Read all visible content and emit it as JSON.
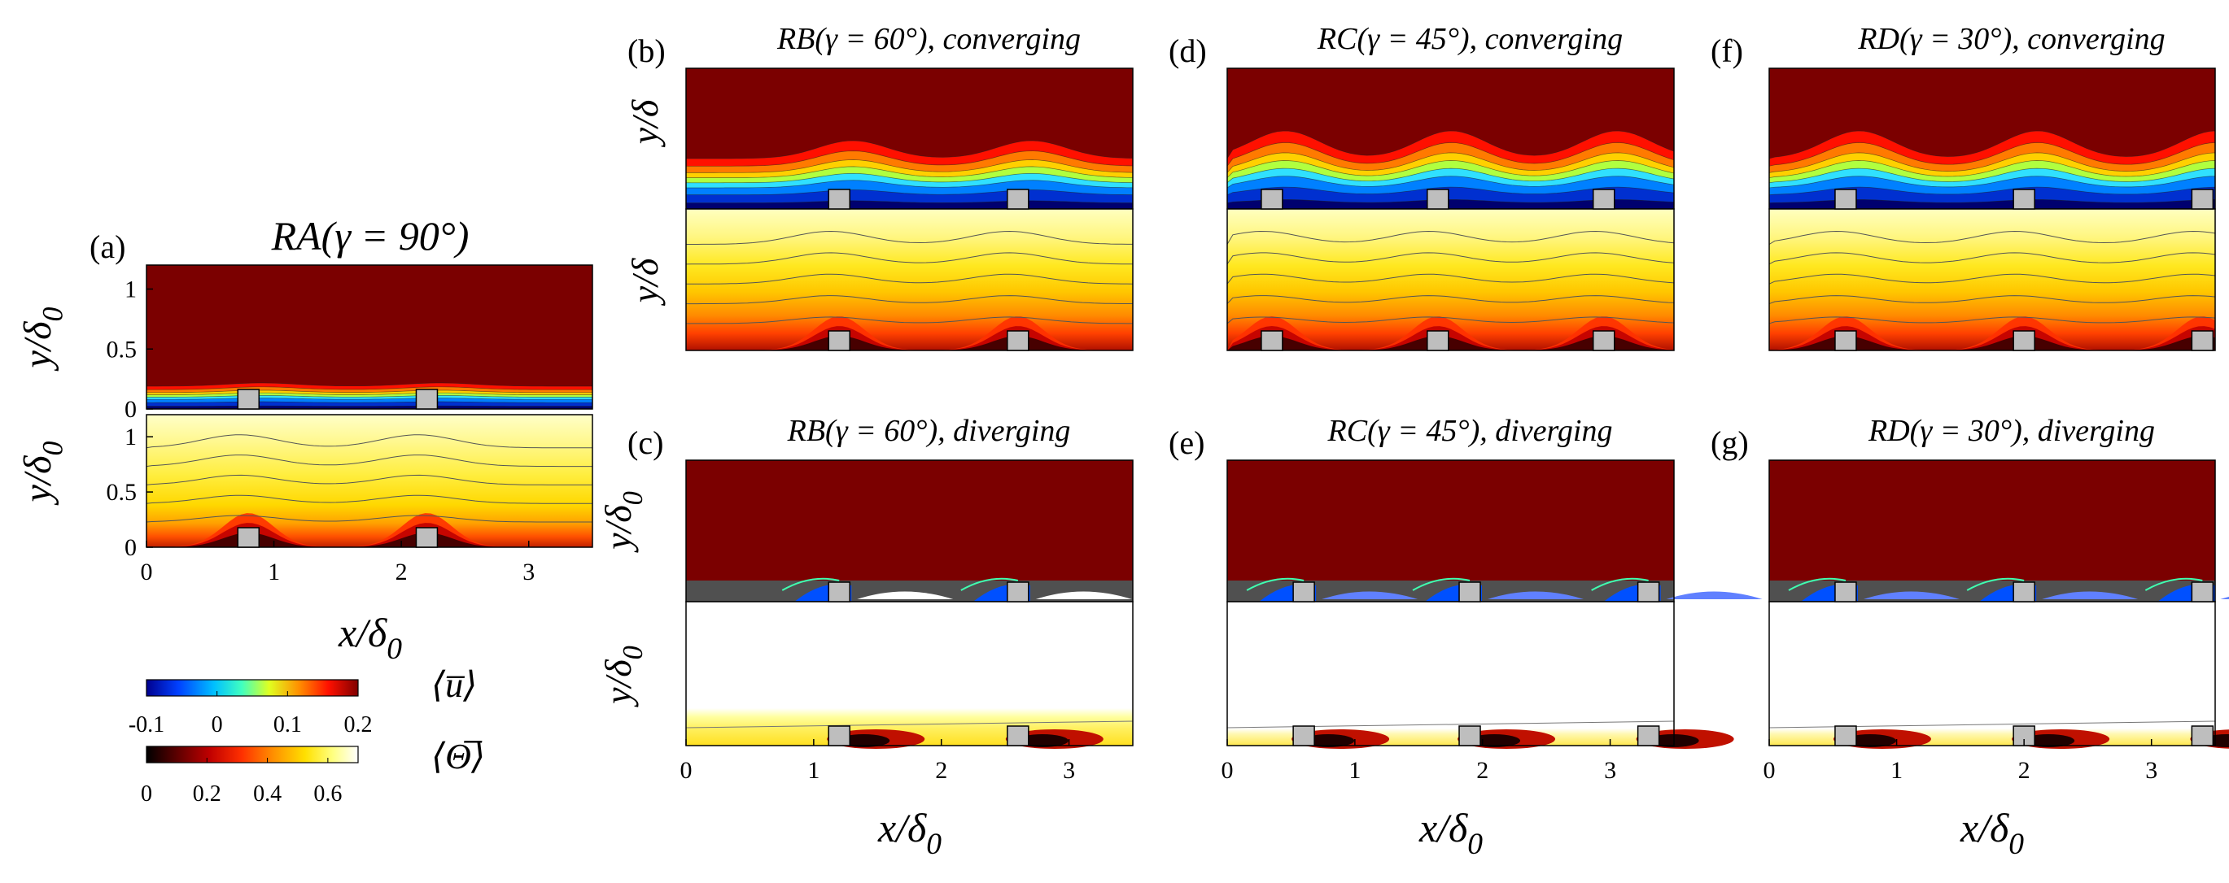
{
  "figure": {
    "panels": [
      {
        "id": "a",
        "label": "(a)",
        "title": "RA(γ = 90°)",
        "xlabel": "x/δ",
        "xlabel_sub": "0",
        "ylabel_top": "y/δ",
        "ylabel_top_sub": "0",
        "ylabel_bottom": "y/δ",
        "ylabel_bottom_sub": "0",
        "xticks": [
          "0",
          "1",
          "2",
          "3"
        ],
        "yticks_top": [
          "0",
          "0.5",
          "1"
        ],
        "yticks_bottom": [
          "0",
          "0.5",
          "1"
        ]
      },
      {
        "id": "b",
        "label": "(b)",
        "title": "RB(γ = 60°), converging",
        "ylabel_top": "y/δ",
        "ylabel_bottom": "y/δ"
      },
      {
        "id": "c",
        "label": "(c)",
        "title": "RB(γ = 60°), diverging",
        "xlabel": "x/δ",
        "xlabel_sub": "0",
        "ylabel_top": "y/δ",
        "ylabel_top_sub": "0",
        "ylabel_bottom": "y/δ",
        "ylabel_bottom_sub": "0",
        "xticks": [
          "0",
          "1",
          "2",
          "3"
        ]
      },
      {
        "id": "d",
        "label": "(d)",
        "title": "RC(γ = 45°), converging"
      },
      {
        "id": "e",
        "label": "(e)",
        "title": "RC(γ = 45°), diverging",
        "xlabel": "x/δ",
        "xlabel_sub": "0",
        "xticks": [
          "0",
          "1",
          "2",
          "3"
        ]
      },
      {
        "id": "f",
        "label": "(f)",
        "title": "RD(γ = 30°), converging"
      },
      {
        "id": "g",
        "label": "(g)",
        "title": "RD(γ = 30°), diverging",
        "xlabel": "x/δ",
        "xlabel_sub": "0",
        "xticks": [
          "0",
          "1",
          "2",
          "3"
        ]
      }
    ],
    "colorbar_u": {
      "symbol": "⟨u̅⟩",
      "ticks": [
        "-0.1",
        "0",
        "0.1",
        "0.2"
      ],
      "range": [
        -0.1,
        0.2
      ],
      "colors": [
        "#00008f",
        "#0060ff",
        "#00e0ff",
        "#80ff80",
        "#ffff00",
        "#ff8000",
        "#ff0000",
        "#800000"
      ]
    },
    "colorbar_theta": {
      "symbol": "⟨Θ̅⟩",
      "ticks": [
        "0",
        "0.2",
        "0.4",
        "0.6"
      ],
      "range": [
        0,
        0.7
      ],
      "colors": [
        "#000000",
        "#5a0000",
        "#b00000",
        "#ff2000",
        "#ff7000",
        "#ffb000",
        "#ffe800",
        "#ffff60",
        "#ffffd0",
        "#ffffff"
      ]
    },
    "colors": {
      "background": "#7b0000",
      "block": "#bebebe",
      "white": "#ffffff"
    }
  },
  "chart_data": {
    "type": "heatmap",
    "description_fields": "contour maps of mean streamwise velocity (top sub-panels) and mean temperature (bottom sub-panels)",
    "x_range": [
      0,
      3.5
    ],
    "y_range": [
      0,
      1.2
    ],
    "u_range": [
      -0.1,
      0.2
    ],
    "theta_range": [
      0,
      0.7
    ],
    "blocks_x": {
      "a": [
        0.8,
        2.2
      ],
      "b": [
        1.2,
        2.6
      ],
      "c": [
        1.2,
        2.6
      ],
      "d": [
        0.35,
        1.65,
        2.95
      ],
      "e": [
        0.6,
        1.9,
        3.3
      ],
      "f": [
        0.6,
        2.0,
        3.4
      ],
      "g": [
        0.6,
        2.0,
        3.4
      ]
    }
  }
}
